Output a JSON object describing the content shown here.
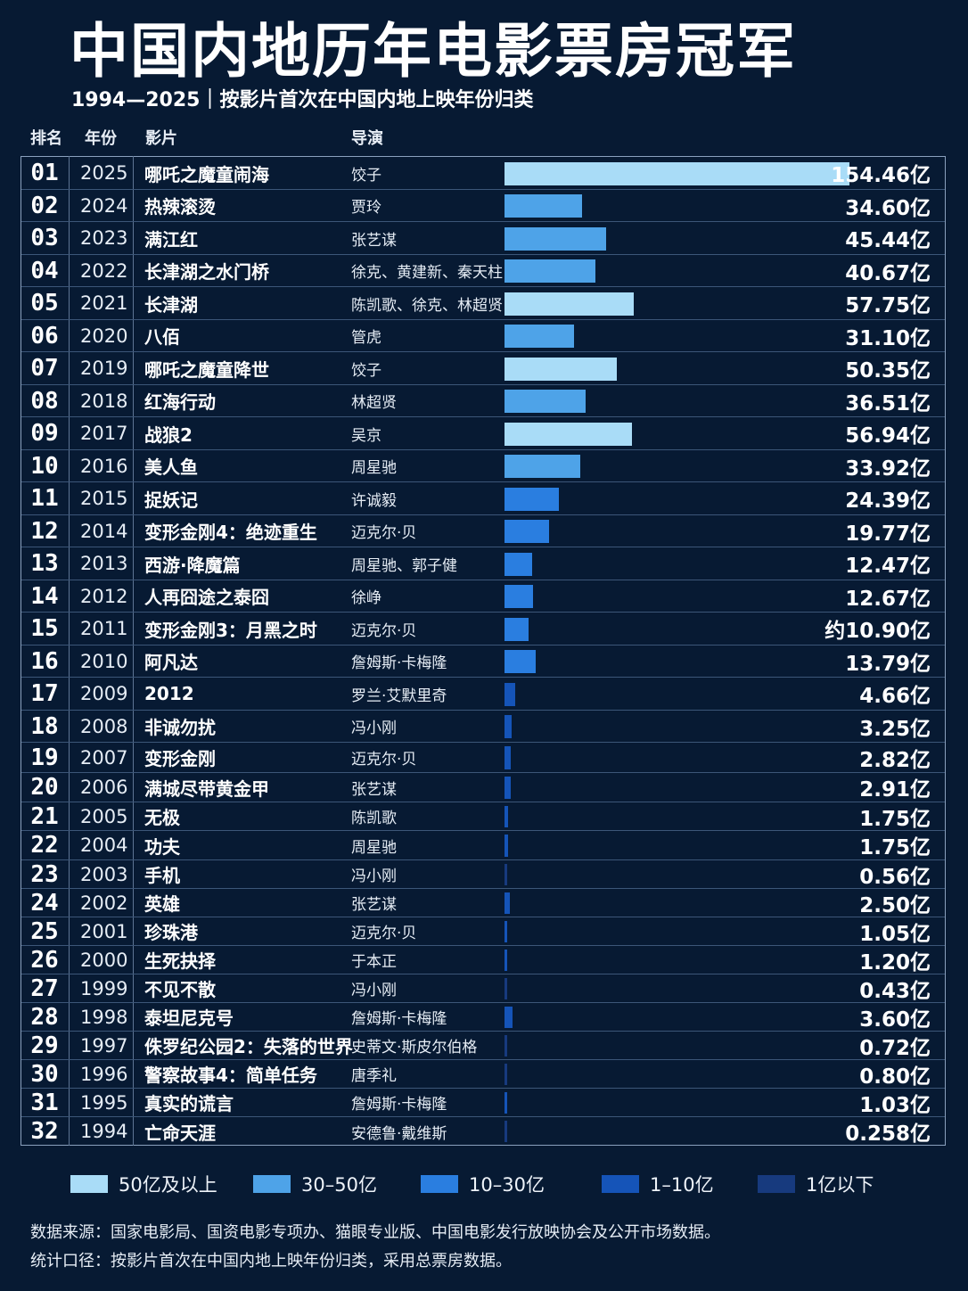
{
  "title": "中国内地历年电影票房冠军",
  "subtitle": "1994—2025｜按影片首次在中国内地上映年份归类",
  "headers": {
    "rank": "排名",
    "year": "年份",
    "film": "影片",
    "director": "导演"
  },
  "colors": {
    "background": "#071a33",
    "tier_50_plus": "#a9dcf7",
    "tier_30_50": "#4ea3e8",
    "tier_10_30": "#2a7ee0",
    "tier_1_10": "#1554b8",
    "tier_under_1": "#173a7e"
  },
  "chart_data": {
    "type": "bar",
    "orientation": "horizontal",
    "title": "中国内地历年电影票房冠军",
    "subtitle": "1994—2025｜按影片首次在中国内地上映年份归类",
    "unit": "亿",
    "xlim": [
      0,
      154.46
    ],
    "rows": [
      {
        "rank": "01",
        "year": "2025",
        "film": "哪吒之魔童闹海",
        "director": "饺子",
        "value": 154.46,
        "label": "154.46亿"
      },
      {
        "rank": "02",
        "year": "2024",
        "film": "热辣滚烫",
        "director": "贾玲",
        "value": 34.6,
        "label": "34.60亿"
      },
      {
        "rank": "03",
        "year": "2023",
        "film": "满江红",
        "director": "张艺谋",
        "value": 45.44,
        "label": "45.44亿"
      },
      {
        "rank": "04",
        "year": "2022",
        "film": "长津湖之水门桥",
        "director": "徐克、黄建新、秦天柱",
        "value": 40.67,
        "label": "40.67亿"
      },
      {
        "rank": "05",
        "year": "2021",
        "film": "长津湖",
        "director": "陈凯歌、徐克、林超贤",
        "value": 57.75,
        "label": "57.75亿"
      },
      {
        "rank": "06",
        "year": "2020",
        "film": "八佰",
        "director": "管虎",
        "value": 31.1,
        "label": "31.10亿"
      },
      {
        "rank": "07",
        "year": "2019",
        "film": "哪吒之魔童降世",
        "director": "饺子",
        "value": 50.35,
        "label": "50.35亿"
      },
      {
        "rank": "08",
        "year": "2018",
        "film": "红海行动",
        "director": "林超贤",
        "value": 36.51,
        "label": "36.51亿"
      },
      {
        "rank": "09",
        "year": "2017",
        "film": "战狼2",
        "director": "吴京",
        "value": 56.94,
        "label": "56.94亿"
      },
      {
        "rank": "10",
        "year": "2016",
        "film": "美人鱼",
        "director": "周星驰",
        "value": 33.92,
        "label": "33.92亿"
      },
      {
        "rank": "11",
        "year": "2015",
        "film": "捉妖记",
        "director": "许诚毅",
        "value": 24.39,
        "label": "24.39亿"
      },
      {
        "rank": "12",
        "year": "2014",
        "film": "变形金刚4：绝迹重生",
        "director": "迈克尔·贝",
        "value": 19.77,
        "label": "19.77亿"
      },
      {
        "rank": "13",
        "year": "2013",
        "film": "西游·降魔篇",
        "director": "周星驰、郭子健",
        "value": 12.47,
        "label": "12.47亿"
      },
      {
        "rank": "14",
        "year": "2012",
        "film": "人再囧途之泰囧",
        "director": "徐峥",
        "value": 12.67,
        "label": "12.67亿"
      },
      {
        "rank": "15",
        "year": "2011",
        "film": "变形金刚3：月黑之时",
        "director": "迈克尔·贝",
        "value": 10.9,
        "label": "约10.90亿"
      },
      {
        "rank": "16",
        "year": "2010",
        "film": "阿凡达",
        "director": "詹姆斯·卡梅隆",
        "value": 13.79,
        "label": "13.79亿"
      },
      {
        "rank": "17",
        "year": "2009",
        "film": "2012",
        "director": "罗兰·艾默里奇",
        "value": 4.66,
        "label": "4.66亿"
      },
      {
        "rank": "18",
        "year": "2008",
        "film": "非诚勿扰",
        "director": "冯小刚",
        "value": 3.25,
        "label": "3.25亿"
      },
      {
        "rank": "19",
        "year": "2007",
        "film": "变形金刚",
        "director": "迈克尔·贝",
        "value": 2.82,
        "label": "2.82亿"
      },
      {
        "rank": "20",
        "year": "2006",
        "film": "满城尽带黄金甲",
        "director": "张艺谋",
        "value": 2.91,
        "label": "2.91亿"
      },
      {
        "rank": "21",
        "year": "2005",
        "film": "无极",
        "director": "陈凯歌",
        "value": 1.75,
        "label": "1.75亿"
      },
      {
        "rank": "22",
        "year": "2004",
        "film": "功夫",
        "director": "周星驰",
        "value": 1.75,
        "label": "1.75亿"
      },
      {
        "rank": "23",
        "year": "2003",
        "film": "手机",
        "director": "冯小刚",
        "value": 0.56,
        "label": "0.56亿"
      },
      {
        "rank": "24",
        "year": "2002",
        "film": "英雄",
        "director": "张艺谋",
        "value": 2.5,
        "label": "2.50亿"
      },
      {
        "rank": "25",
        "year": "2001",
        "film": "珍珠港",
        "director": "迈克尔·贝",
        "value": 1.05,
        "label": "1.05亿"
      },
      {
        "rank": "26",
        "year": "2000",
        "film": "生死抉择",
        "director": "于本正",
        "value": 1.2,
        "label": "1.20亿"
      },
      {
        "rank": "27",
        "year": "1999",
        "film": "不见不散",
        "director": "冯小刚",
        "value": 0.43,
        "label": "0.43亿"
      },
      {
        "rank": "28",
        "year": "1998",
        "film": "泰坦尼克号",
        "director": "詹姆斯·卡梅隆",
        "value": 3.6,
        "label": "3.60亿"
      },
      {
        "rank": "29",
        "year": "1997",
        "film": "侏罗纪公园2：失落的世界",
        "director": "史蒂文·斯皮尔伯格",
        "value": 0.72,
        "label": "0.72亿"
      },
      {
        "rank": "30",
        "year": "1996",
        "film": "警察故事4：简单任务",
        "director": "唐季礼",
        "value": 0.8,
        "label": "0.80亿"
      },
      {
        "rank": "31",
        "year": "1995",
        "film": "真实的谎言",
        "director": "詹姆斯·卡梅隆",
        "value": 1.03,
        "label": "1.03亿"
      },
      {
        "rank": "32",
        "year": "1994",
        "film": "亡命天涯",
        "director": "安德鲁·戴维斯",
        "value": 0.258,
        "label": "0.258亿"
      }
    ],
    "legend": [
      {
        "label": "50亿及以上",
        "color": "#a9dcf7"
      },
      {
        "label": "30–50亿",
        "color": "#4ea3e8"
      },
      {
        "label": "10–30亿",
        "color": "#2a7ee0"
      },
      {
        "label": "1–10亿",
        "color": "#1554b8"
      },
      {
        "label": "1亿以下",
        "color": "#173a7e"
      }
    ]
  },
  "notes": {
    "source": "数据来源：国家电影局、国资电影专项办、猫眼专业版、中国电影发行放映协会及公开市场数据。",
    "method": "统计口径：按影片首次在中国内地上映年份归类，采用总票房数据。"
  }
}
